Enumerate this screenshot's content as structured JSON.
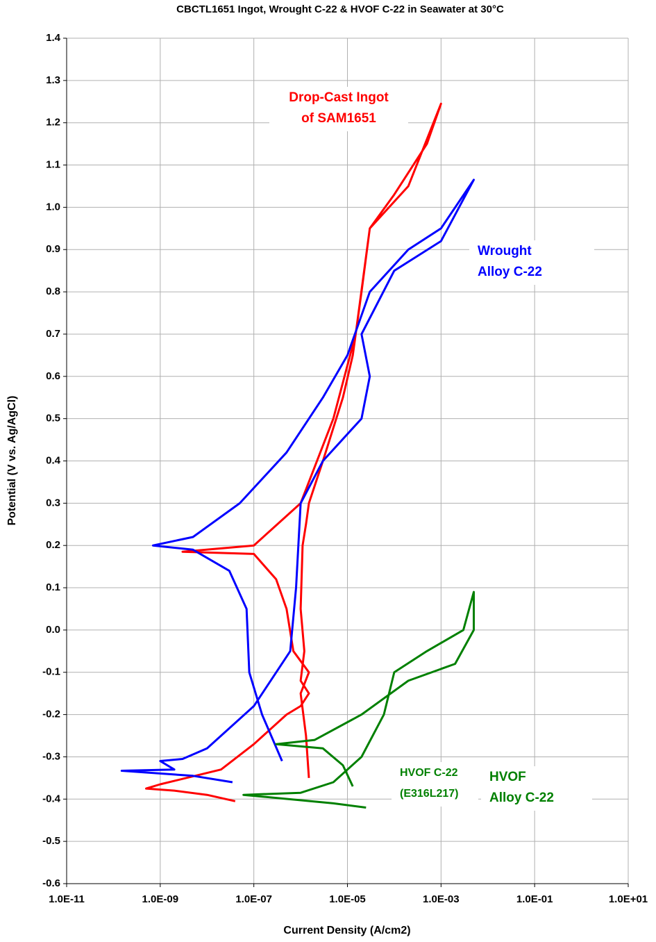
{
  "chart_data": {
    "type": "line",
    "title": "CBCTL1651 Ingot, Wrought C-22 & HVOF C-22 in Seawater at 30°C",
    "xlabel": "Current Density (A/cm2)",
    "ylabel": "Potential (V vs. Ag/AgCl)",
    "xscale": "log",
    "xlim": [
      1e-11,
      10
    ],
    "xticks": [
      {
        "value": 1e-11,
        "label": "1.0E-11"
      },
      {
        "value": 1e-09,
        "label": "1.0E-09"
      },
      {
        "value": 1e-07,
        "label": "1.0E-07"
      },
      {
        "value": 1e-05,
        "label": "1.0E-05"
      },
      {
        "value": 0.001,
        "label": "1.0E-03"
      },
      {
        "value": 0.1,
        "label": "1.0E-01"
      },
      {
        "value": 10,
        "label": "1.0E+01"
      }
    ],
    "ylim": [
      -0.6,
      1.4
    ],
    "yticks": [
      -0.6,
      -0.5,
      -0.4,
      -0.3,
      -0.2,
      -0.1,
      {
        "value": 0,
        "label": "0.0"
      },
      0.1,
      0.2,
      0.3,
      0.4,
      0.5,
      0.6,
      0.7,
      0.8,
      0.9,
      {
        "value": 1,
        "label": "1.0"
      },
      1.1,
      1.2,
      1.3,
      1.4
    ],
    "grid": true,
    "series": [
      {
        "color": "#ff0000",
        "x": [
          4e-08,
          1e-08,
          2e-09,
          5e-10,
          1e-09,
          2e-08,
          1e-07,
          5e-07,
          1e-06,
          1.5e-06,
          1e-06,
          1.2e-06,
          1e-06,
          1.1e-06,
          1.3e-06,
          1.5e-06,
          3e-06,
          8e-06,
          1.3e-05,
          2e-05,
          3e-05,
          0.0002,
          0.001,
          0.0005,
          0.0001,
          3e-05,
          1.5e-05,
          5e-06,
          1e-06,
          1e-07,
          3e-09,
          1e-07,
          3e-07,
          5e-07,
          7e-07,
          1.5e-06,
          1e-06,
          1.3e-06,
          1.5e-06
        ],
        "values": [
          -0.405,
          -0.39,
          -0.38,
          -0.375,
          -0.365,
          -0.33,
          -0.27,
          -0.2,
          -0.18,
          -0.15,
          -0.12,
          -0.05,
          0.05,
          0.2,
          0.25,
          0.3,
          0.4,
          0.55,
          0.65,
          0.8,
          0.95,
          1.05,
          1.245,
          1.15,
          1.03,
          0.95,
          0.7,
          0.5,
          0.3,
          0.2,
          0.185,
          0.18,
          0.12,
          0.05,
          -0.05,
          -0.1,
          -0.15,
          -0.25,
          -0.35
        ]
      },
      {
        "color": "#0000ff",
        "x": [
          3.5e-08,
          5e-09,
          1.5e-10,
          2e-09,
          1e-09,
          3e-09,
          1e-08,
          1e-07,
          6e-07,
          8e-07,
          1e-06,
          3e-06,
          2e-05,
          3e-05,
          2e-05,
          0.0001,
          0.001,
          0.005,
          0.001,
          0.0002,
          3e-05,
          1e-05,
          3e-06,
          5e-07,
          5e-08,
          5e-09,
          7e-10,
          5e-09,
          3e-08,
          7e-08,
          8e-08,
          1.5e-07,
          4e-07
        ],
        "values": [
          -0.36,
          -0.345,
          -0.333,
          -0.33,
          -0.31,
          -0.305,
          -0.28,
          -0.18,
          -0.05,
          0.1,
          0.3,
          0.4,
          0.5,
          0.6,
          0.7,
          0.85,
          0.92,
          1.065,
          0.95,
          0.9,
          0.8,
          0.65,
          0.55,
          0.42,
          0.3,
          0.22,
          0.2,
          0.19,
          0.14,
          0.05,
          -0.1,
          -0.2,
          -0.31
        ]
      },
      {
        "color": "#008000",
        "x": [
          2.5e-05,
          5e-06,
          6e-08,
          1e-06,
          5e-06,
          2e-05,
          6e-05,
          0.0001,
          0.0005,
          0.003,
          0.005,
          0.005,
          0.002,
          0.0002,
          2e-05,
          2e-06,
          3e-07,
          3e-06,
          8e-06,
          1.3e-05
        ],
        "values": [
          -0.42,
          -0.41,
          -0.39,
          -0.385,
          -0.36,
          -0.3,
          -0.2,
          -0.1,
          -0.05,
          0.0,
          0.09,
          0.0,
          -0.08,
          -0.12,
          -0.2,
          -0.26,
          -0.27,
          -0.28,
          -0.32,
          -0.37
        ]
      }
    ],
    "annotations": [
      {
        "lines": [
          "Drop-Cast Ingot",
          "of SAM1651"
        ],
        "color": "#ff0000"
      },
      {
        "lines": [
          "Wrought",
          "Alloy C-22"
        ],
        "color": "#0000ff"
      },
      {
        "lines": [
          "HVOF C-22",
          "(E316L217)"
        ],
        "color": "#008000"
      },
      {
        "lines": [
          "HVOF",
          "Alloy C-22"
        ],
        "color": "#008000"
      }
    ]
  }
}
